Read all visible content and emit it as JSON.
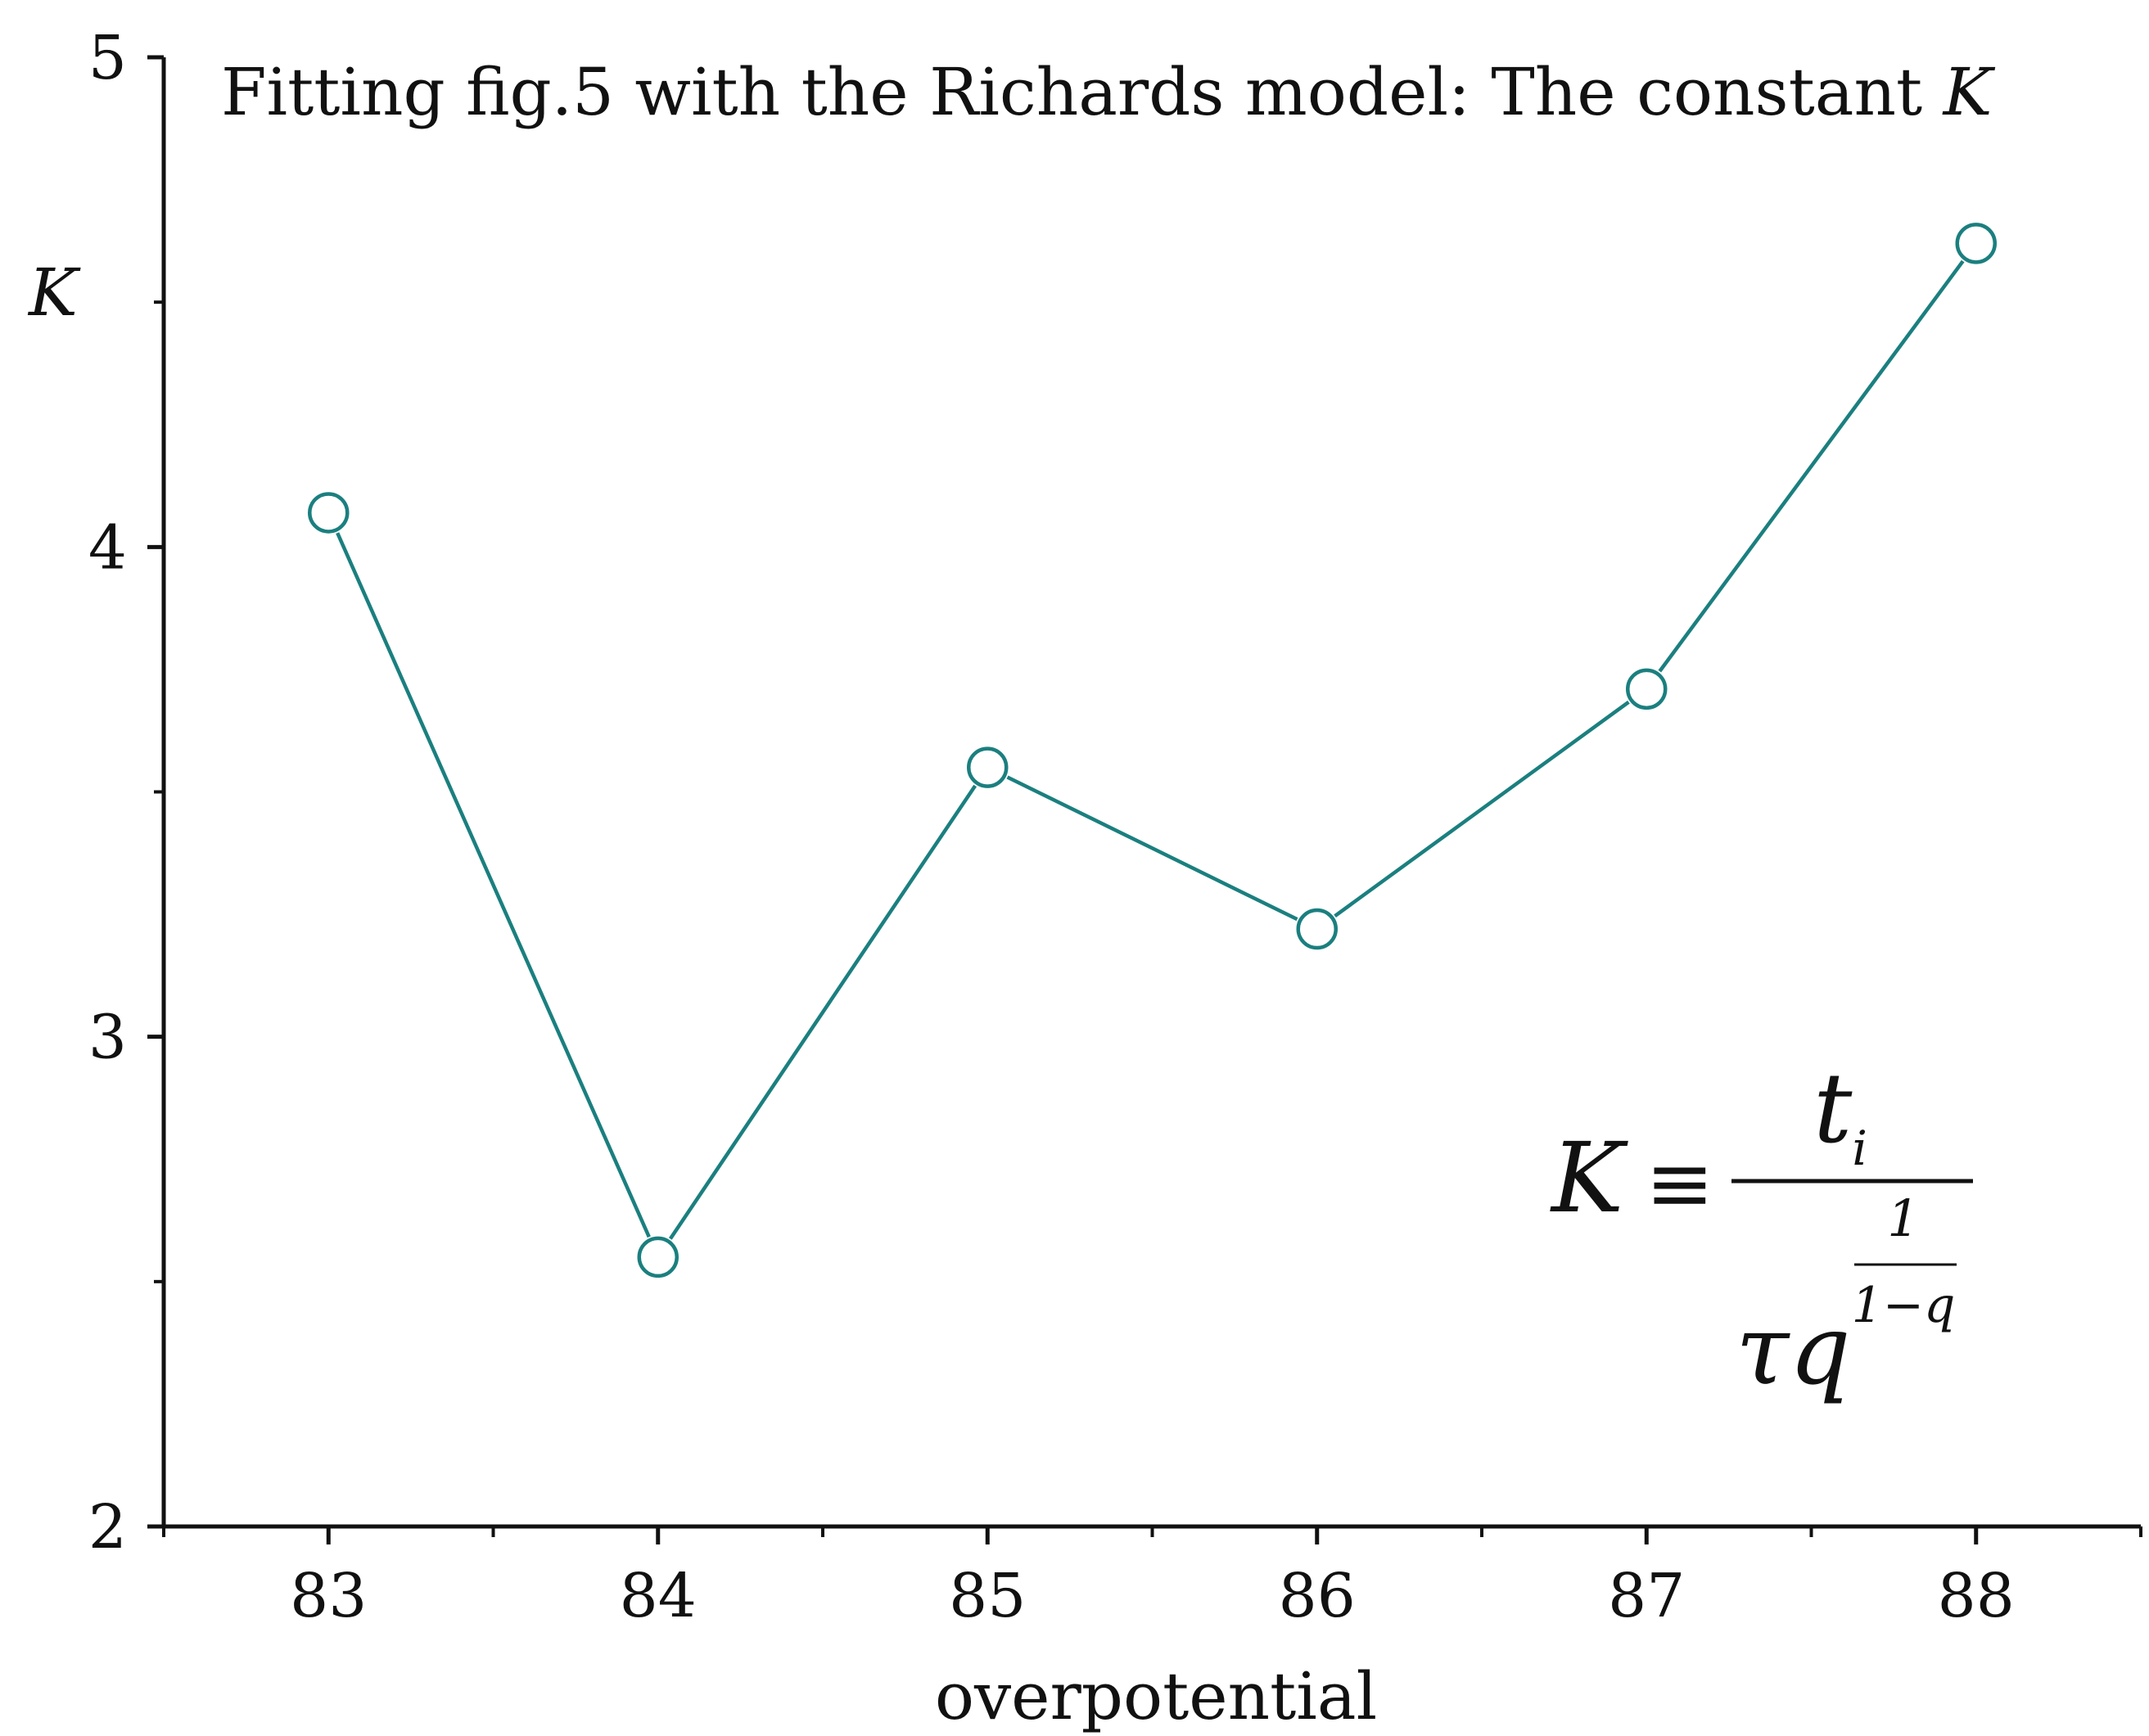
{
  "chart_data": {
    "type": "line",
    "title": "Fitting fig.5 with the Richards model: The constant ",
    "title_var": "K",
    "xlabel": "overpotential",
    "ylabel": "K",
    "xlim": [
      82.5,
      88.5
    ],
    "ylim": [
      2,
      5
    ],
    "xticks": [
      83,
      84,
      85,
      86,
      87,
      88
    ],
    "yticks": [
      2,
      3,
      4,
      5
    ],
    "x": [
      83,
      84,
      85,
      86,
      87,
      88
    ],
    "series": [
      {
        "values": [
          4.07,
          2.55,
          3.55,
          3.22,
          3.71,
          4.62
        ],
        "color": "#1b7f7f",
        "marker": "open-circle"
      }
    ],
    "grid": false,
    "legend": "none",
    "annotation": {
      "lhs": "K",
      "op": "≡",
      "numerator": "t",
      "numerator_sub": "i",
      "denominator": "τq",
      "exp_num": "1",
      "exp_den": "1−q"
    }
  }
}
